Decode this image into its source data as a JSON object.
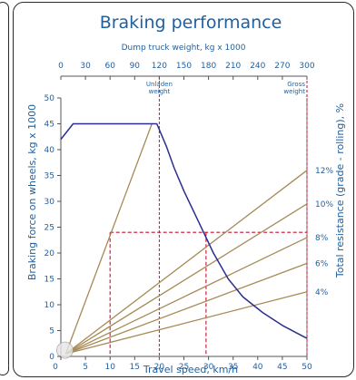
{
  "chart_data": {
    "type": "line",
    "title": "Braking performance",
    "top_axis": {
      "label": "Dump truck weight, kg x 1000",
      "ticks": [
        0,
        30,
        60,
        90,
        120,
        150,
        180,
        210,
        240,
        270,
        300
      ],
      "range": [
        0,
        300
      ]
    },
    "x_axis": {
      "label": "Travel speed, km/h",
      "ticks": [
        0,
        5,
        10,
        15,
        20,
        25,
        30,
        35,
        40,
        45,
        50
      ],
      "range": [
        0,
        50
      ]
    },
    "y_axis": {
      "label": "Braking force on wheels, kg x 1000",
      "ticks": [
        0,
        5,
        10,
        15,
        20,
        25,
        30,
        35,
        40,
        45,
        50
      ],
      "range": [
        0,
        50
      ]
    },
    "right_axis": {
      "label": "Total resistance (grade - rolling), %"
    },
    "weight_markers": [
      {
        "label": "Unladen weight",
        "x_weight": 120
      },
      {
        "label": "Gross weight",
        "x_weight": 300
      }
    ],
    "series": [
      {
        "role": "braking_curve",
        "color": "#2b2f8f",
        "points": [
          [
            0,
            42
          ],
          [
            2.5,
            45
          ],
          [
            19.5,
            45
          ],
          [
            21.5,
            40.5
          ],
          [
            23,
            36.5
          ],
          [
            25,
            32
          ],
          [
            28,
            26
          ],
          [
            31,
            20
          ],
          [
            34,
            15
          ],
          [
            37,
            11.5
          ],
          [
            41,
            8.5
          ],
          [
            45,
            6
          ],
          [
            48,
            4.5
          ],
          [
            50,
            3.5
          ]
        ]
      }
    ],
    "resistance_lines": [
      {
        "label": "12%",
        "end": [
          50,
          36
        ]
      },
      {
        "label": "10%",
        "end": [
          50,
          29.5
        ]
      },
      {
        "label": "8%",
        "end": [
          50,
          23
        ]
      },
      {
        "label": "6%",
        "end": [
          50,
          18
        ]
      },
      {
        "label": "4%",
        "end": [
          50,
          12.5
        ]
      },
      {
        "label": "",
        "end": [
          18.5,
          45
        ]
      }
    ],
    "resistance_origin": [
      1,
      0.5
    ],
    "guide_lines": [
      {
        "from": [
          10,
          24
        ],
        "to": [
          50,
          24
        ]
      },
      {
        "from": [
          10,
          24
        ],
        "to": [
          10,
          0
        ]
      },
      {
        "from": [
          29.5,
          24
        ],
        "to": [
          29.5,
          0
        ]
      }
    ],
    "colors": {
      "text": "#1f5f9e",
      "axis": "#555555",
      "curve": "#2b2f8f",
      "resistance": "#a68a55",
      "guide": "#c8102e"
    }
  }
}
